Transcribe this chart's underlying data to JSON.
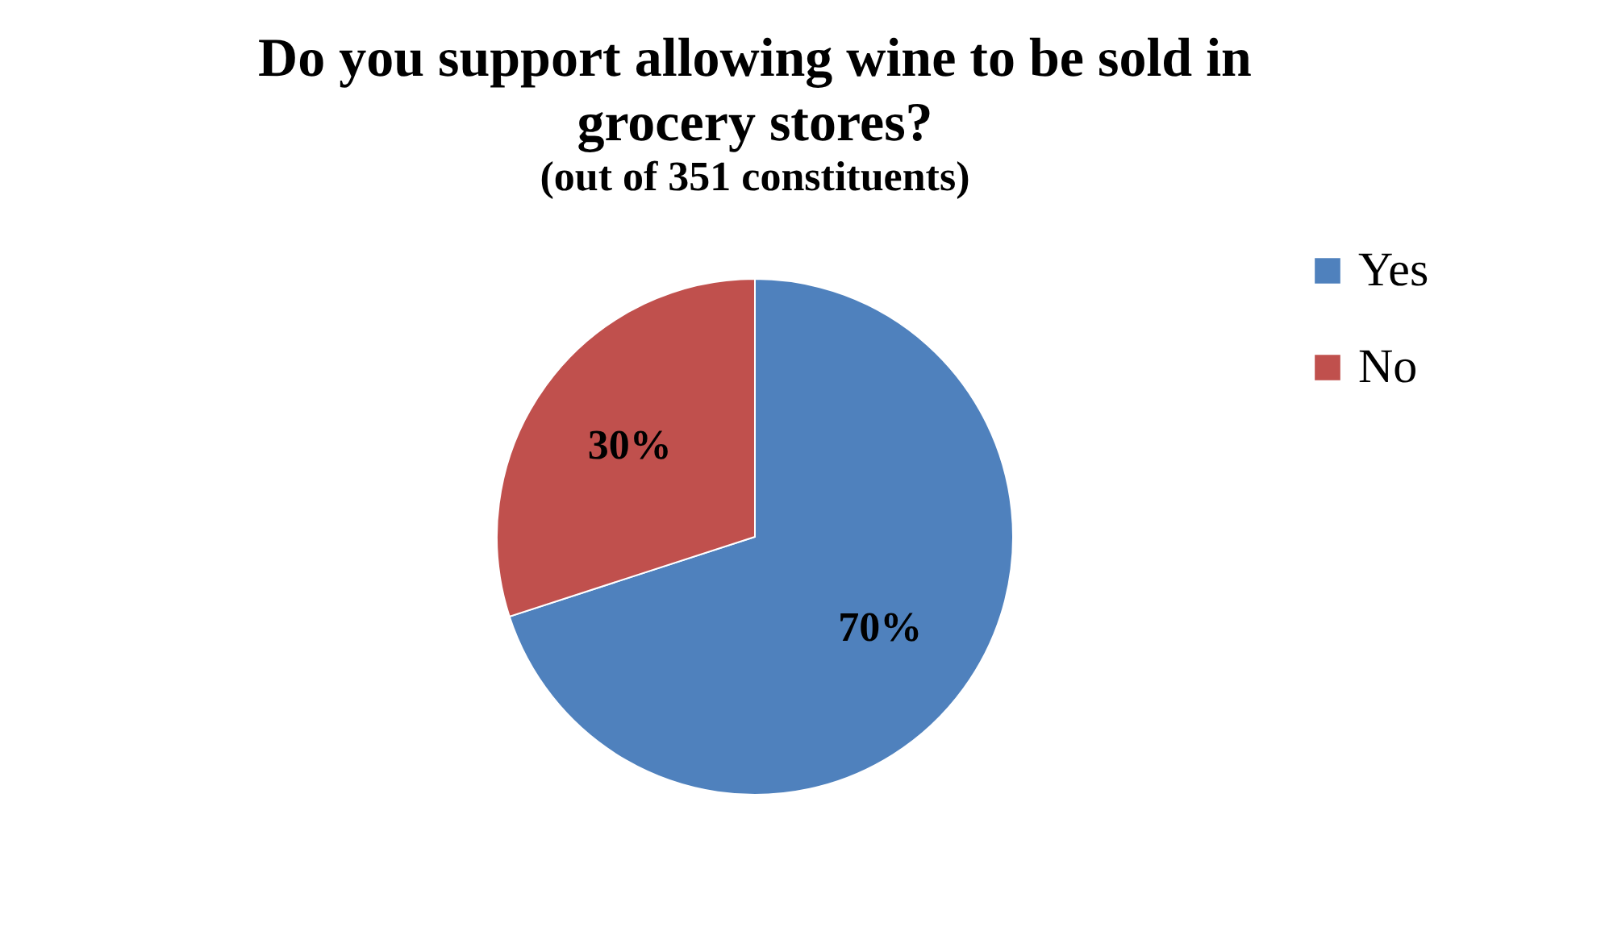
{
  "chart_data": {
    "type": "pie",
    "title": "Do you support allowing wine to be sold in grocery stores?",
    "subtitle": "(out of 351 constituents)",
    "categories": [
      "Yes",
      "No"
    ],
    "values": [
      70,
      30
    ],
    "colors": [
      "#4f81bd",
      "#c0504d"
    ],
    "value_labels": [
      "70%",
      "30%"
    ],
    "legend": "right"
  }
}
